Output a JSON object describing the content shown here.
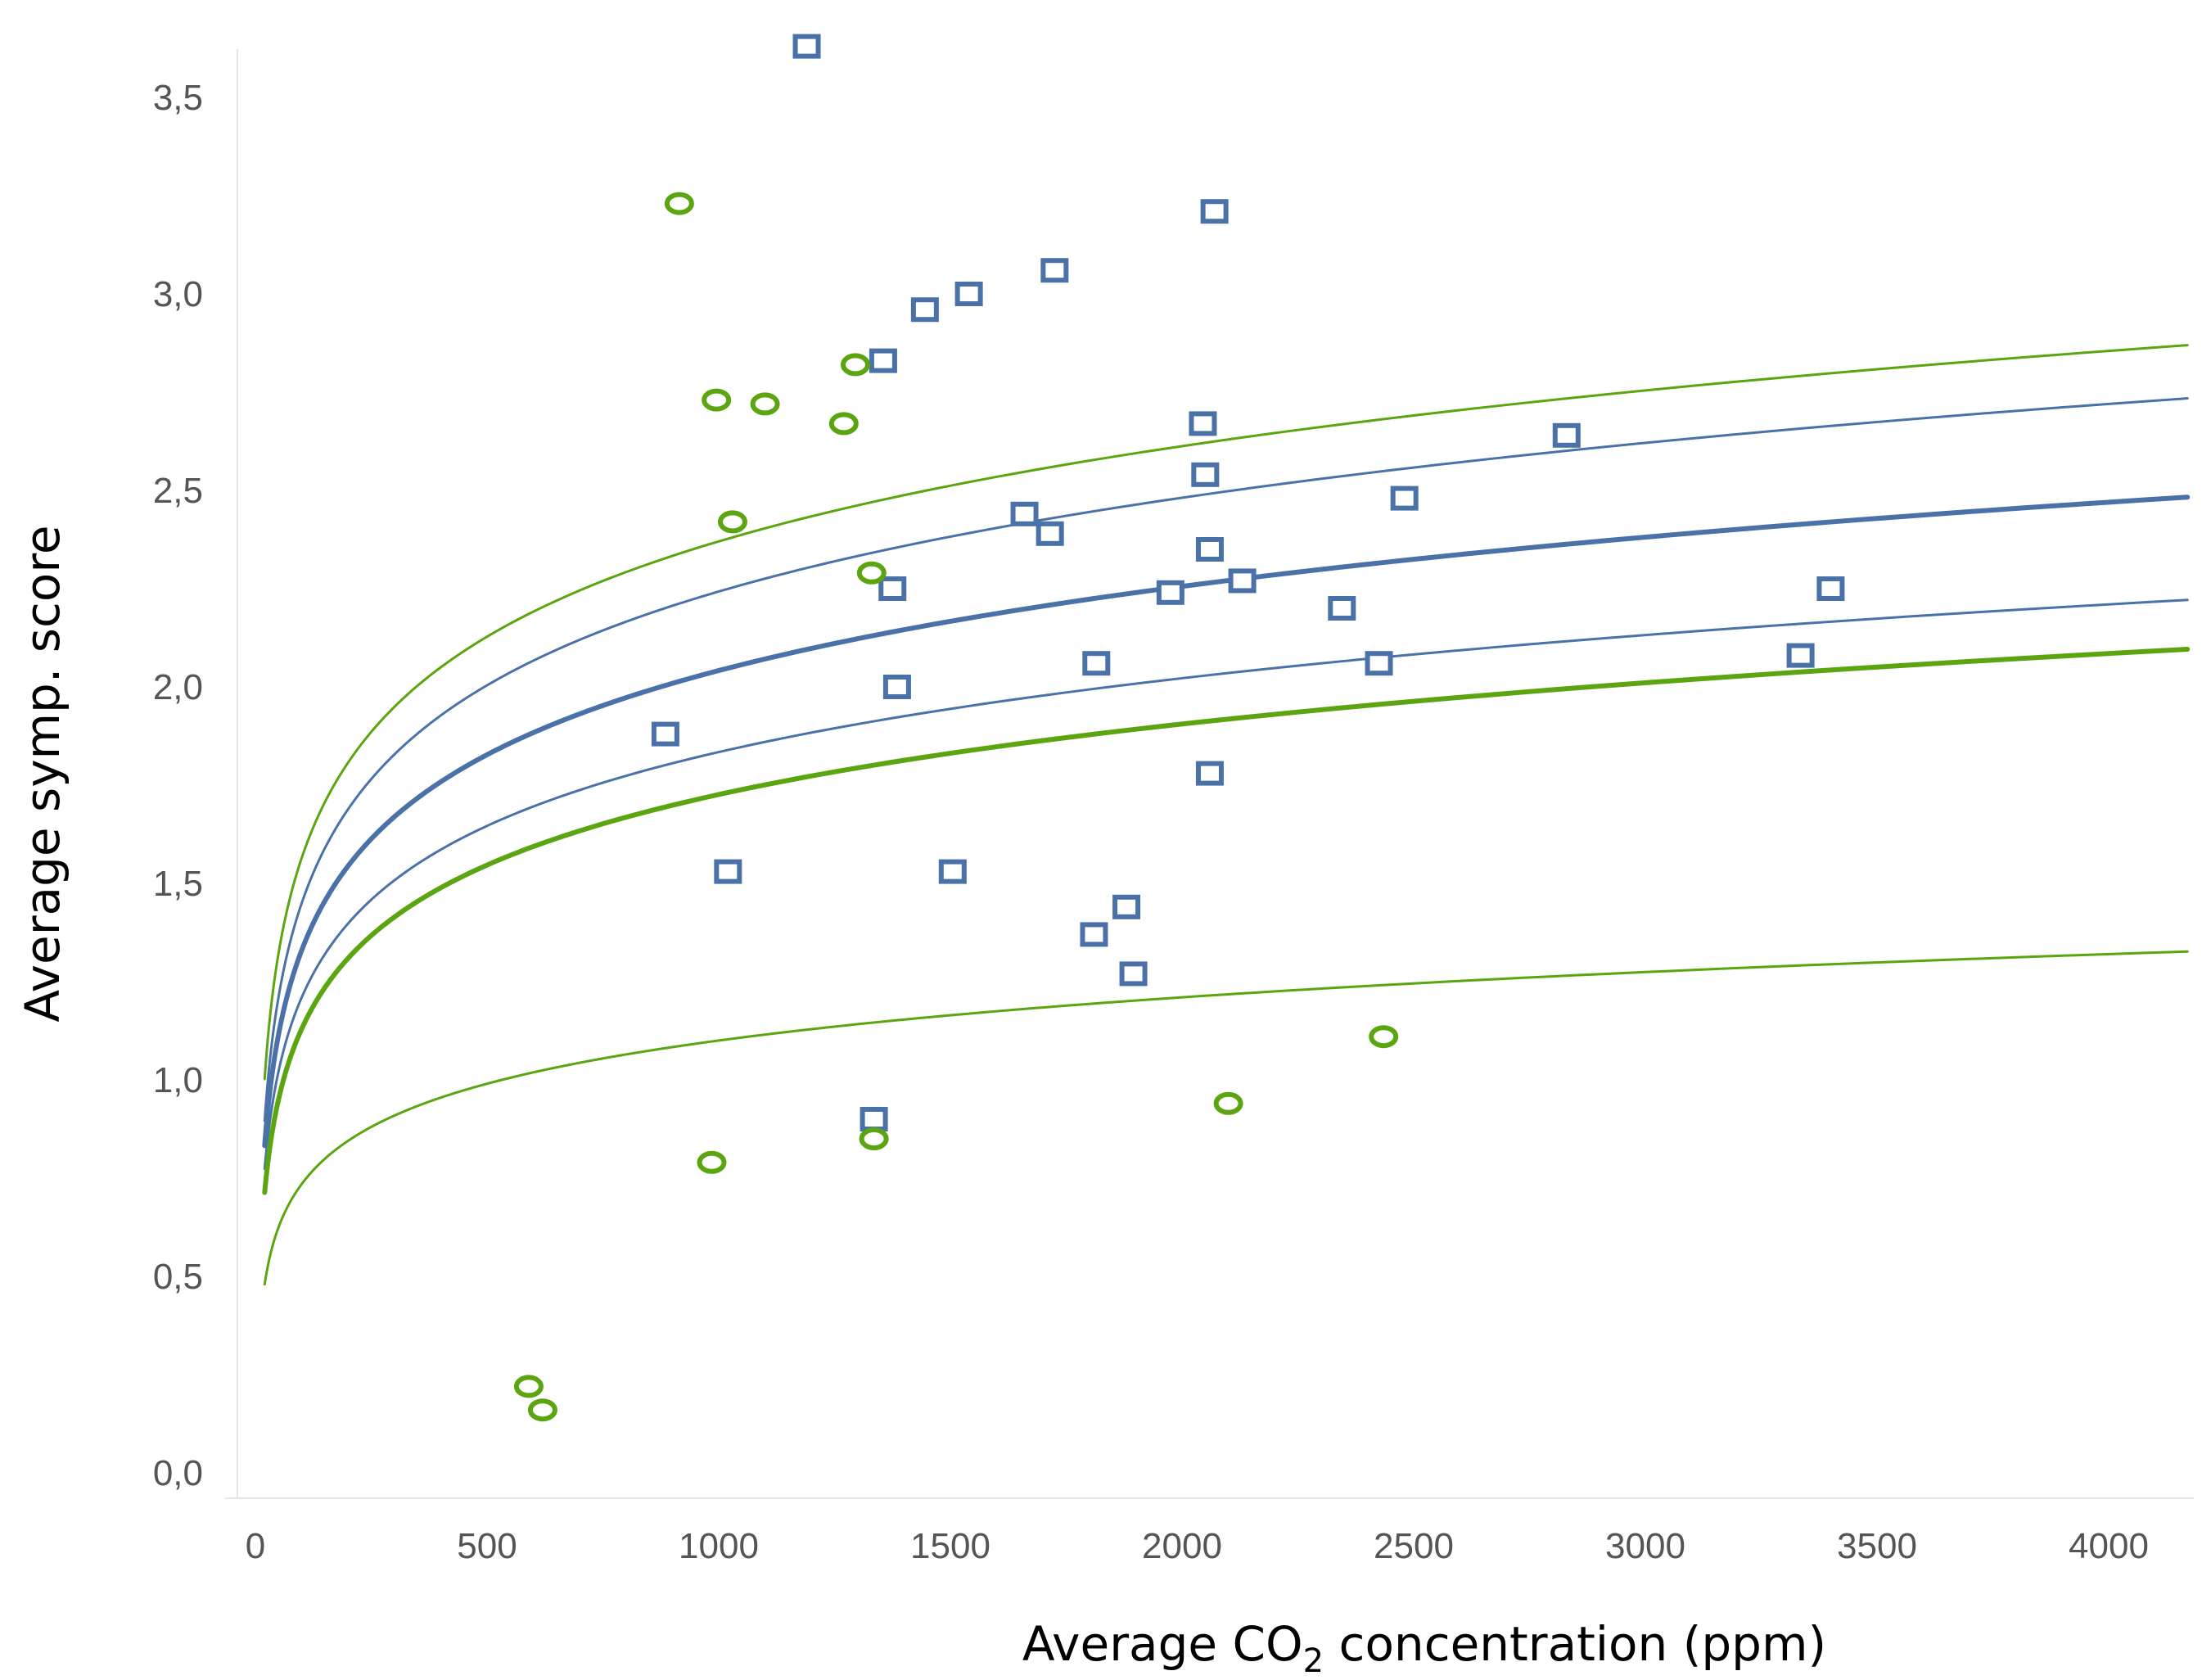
{
  "chart_data": {
    "type": "scatter",
    "title": "",
    "xlabel": "Average CO2 concentration (ppm)",
    "xlabel_parts": {
      "pre": "Average CO",
      "sub": "2",
      "post": " concentration (ppm)"
    },
    "ylabel": "Average symp. score",
    "xlim": [
      -50,
      4180
    ],
    "ylim": [
      -0.05,
      3.7
    ],
    "x_ticks": [
      0,
      500,
      1000,
      1500,
      2000,
      2500,
      3000,
      3500,
      4000
    ],
    "x_tick_labels": [
      "0",
      "500",
      "1000",
      "1500",
      "2000",
      "2500",
      "3000",
      "3500",
      "4000"
    ],
    "y_ticks": [
      0,
      0.5,
      1.0,
      1.5,
      2.0,
      2.5,
      3.0,
      3.5
    ],
    "y_tick_labels": [
      "0,0",
      "0,5",
      "1,0",
      "1,5",
      "2,0",
      "2,5",
      "3,0",
      "3,5"
    ],
    "grid": false,
    "colors": {
      "blue": "#4a72a8",
      "green": "#5aa510",
      "axis": "#dddddd",
      "tick_text": "#555555"
    },
    "series": [
      {
        "name": "blue squares",
        "marker": "square",
        "color": "#4a72a8",
        "points": [
          [
            1190,
            3.63
          ],
          [
            2070,
            3.21
          ],
          [
            1725,
            3.06
          ],
          [
            1540,
            3.0
          ],
          [
            1445,
            2.96
          ],
          [
            1355,
            2.83
          ],
          [
            2045,
            2.67
          ],
          [
            2830,
            2.64
          ],
          [
            2050,
            2.54
          ],
          [
            2480,
            2.48
          ],
          [
            1660,
            2.44
          ],
          [
            1715,
            2.39
          ],
          [
            2060,
            2.35
          ],
          [
            2130,
            2.27
          ],
          [
            1375,
            2.25
          ],
          [
            1975,
            2.24
          ],
          [
            3400,
            2.25
          ],
          [
            2345,
            2.2
          ],
          [
            1815,
            2.06
          ],
          [
            2425,
            2.06
          ],
          [
            3335,
            2.08
          ],
          [
            1385,
            2.0
          ],
          [
            885,
            1.88
          ],
          [
            2060,
            1.78
          ],
          [
            1020,
            1.53
          ],
          [
            1505,
            1.53
          ],
          [
            1880,
            1.44
          ],
          [
            1810,
            1.37
          ],
          [
            1895,
            1.27
          ],
          [
            1335,
            0.9
          ]
        ]
      },
      {
        "name": "green circles",
        "marker": "circle",
        "color": "#5aa510",
        "points": [
          [
            915,
            3.23
          ],
          [
            1295,
            2.82
          ],
          [
            995,
            2.73
          ],
          [
            1100,
            2.72
          ],
          [
            1270,
            2.67
          ],
          [
            1030,
            2.42
          ],
          [
            1330,
            2.29
          ],
          [
            2435,
            1.11
          ],
          [
            2100,
            0.94
          ],
          [
            1335,
            0.85
          ],
          [
            985,
            0.79
          ],
          [
            590,
            0.22
          ],
          [
            620,
            0.16
          ]
        ]
      }
    ],
    "fit_curves": [
      {
        "name": "green upper band",
        "color": "#5aa510",
        "weight": "thin",
        "x_start": 20,
        "x_end": 4170,
        "y_at_100": 1.565,
        "y_at_4000": 2.855
      },
      {
        "name": "blue upper band",
        "color": "#4a72a8",
        "weight": "thin",
        "x_start": 20,
        "x_end": 4170,
        "y_at_100": 1.45,
        "y_at_4000": 2.72
      },
      {
        "name": "blue fit",
        "color": "#4a72a8",
        "weight": "thick",
        "x_start": 20,
        "x_end": 4170,
        "y_at_100": 1.33,
        "y_at_4000": 2.47
      },
      {
        "name": "blue lower band",
        "color": "#4a72a8",
        "weight": "thin",
        "x_start": 20,
        "x_end": 4170,
        "y_at_100": 1.21,
        "y_at_4000": 2.21
      },
      {
        "name": "green fit",
        "color": "#5aa510",
        "weight": "thick",
        "x_start": 20,
        "x_end": 4170,
        "y_at_100": 1.13,
        "y_at_4000": 2.085
      },
      {
        "name": "green lower band",
        "color": "#5aa510",
        "weight": "thin",
        "x_start": 20,
        "x_end": 4170,
        "y_at_100": 0.735,
        "y_at_4000": 1.32
      }
    ]
  }
}
